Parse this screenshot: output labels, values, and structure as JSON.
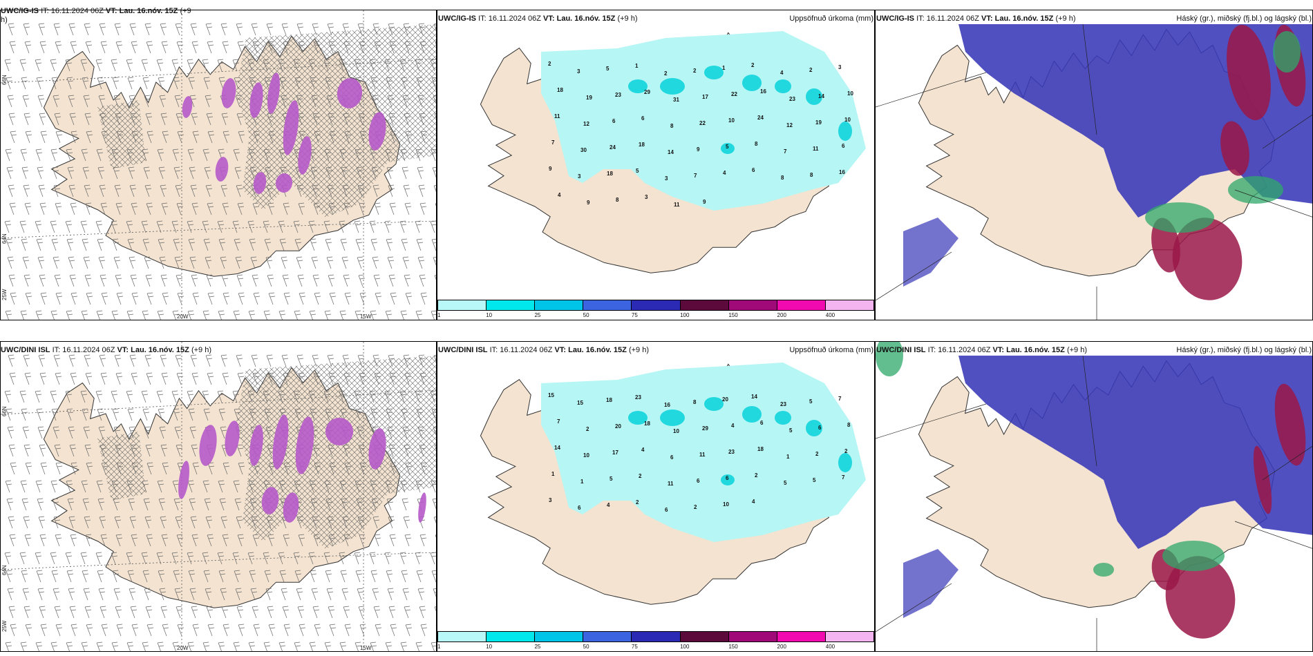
{
  "rows": [
    {
      "model": "UWC/IG-IS",
      "wind_panel": {
        "title_model": "UWC/IG-IS",
        "title_it": "IT: 16.11.2024 06Z",
        "title_vt_label": "VT:",
        "title_vt": "Lau. 16.nóv. 15Z",
        "title_lead": "(+9",
        "title_lead_wrap": "h)"
      },
      "precip_panel": {
        "title_model": "UWC/IG-IS",
        "title_it": "IT: 16.11.2024 06Z",
        "title_vt_label": "VT:",
        "title_vt": "Lau. 16.nóv. 15Z",
        "title_lead": "(+9 h)",
        "right_title": "Uppsöfnuð úrkoma (mm)",
        "values": [
          "2",
          "3",
          "5",
          "1",
          "2",
          "2",
          "1",
          "2",
          "4",
          "2",
          "3",
          "18",
          "19",
          "23",
          "29",
          "31",
          "17",
          "22",
          "16",
          "23",
          "14",
          "10",
          "11",
          "12",
          "6",
          "6",
          "8",
          "22",
          "10",
          "24",
          "12",
          "19",
          "10",
          "7",
          "30",
          "24",
          "18",
          "14",
          "9",
          "5",
          "8",
          "7",
          "11",
          "6",
          "9",
          "3",
          "18",
          "5",
          "3",
          "7",
          "4",
          "6",
          "8",
          "8",
          "16",
          "4",
          "9",
          "8",
          "3",
          "11",
          "9"
        ]
      },
      "cloud_panel": {
        "title_model": "UWC/IG-IS",
        "title_it": "IT: 16.11.2024 06Z",
        "title_vt_label": "VT:",
        "title_vt": "Lau. 16.nóv. 15Z",
        "title_lead": "(+9 h)",
        "right_title": "Háský (gr.), miðský (fj.bl.) og lágský (bl.)"
      }
    },
    {
      "model": "UWC/DINI ISL",
      "wind_panel": {
        "title_model": "UWC/DINI ISL",
        "title_it": "IT: 16.11.2024 06Z",
        "title_vt_label": "VT:",
        "title_vt": "Lau. 16.nóv. 15Z",
        "title_lead": "(+9 h)"
      },
      "precip_panel": {
        "title_model": "UWC/DINI ISL",
        "title_it": "IT: 16.11.2024 06Z",
        "title_vt_label": "VT:",
        "title_vt": "Lau. 16.nóv. 15Z",
        "title_lead": "(+9 h)",
        "right_title": "Uppsöfnuð úrkoma (mm)",
        "values": [
          "15",
          "15",
          "18",
          "23",
          "16",
          "8",
          "20",
          "14",
          "23",
          "5",
          "7",
          "7",
          "2",
          "20",
          "18",
          "10",
          "29",
          "4",
          "6",
          "5",
          "6",
          "8",
          "14",
          "10",
          "17",
          "4",
          "6",
          "11",
          "23",
          "18",
          "1",
          "2",
          "2",
          "1",
          "1",
          "5",
          "2",
          "11",
          "6",
          "6",
          "2",
          "5",
          "5",
          "7",
          "3",
          "6",
          "4",
          "2",
          "6",
          "2",
          "10",
          "4"
        ]
      },
      "cloud_panel": {
        "title_model": "UWC/DINI ISL",
        "title_it": "IT: 16.11.2024 06Z",
        "title_vt_label": "VT:",
        "title_vt": "Lau. 16.nóv. 15Z",
        "title_lead": "(+9 h)",
        "right_title": "Háský (gr.), miðský (fj.bl.) og lágský (bl.)"
      }
    }
  ],
  "axis_labels": {
    "lon_20": "20W",
    "lon_15": "15W",
    "lat_66": "66N",
    "lat_64": "64N",
    "lon_25": "25W"
  },
  "colorbar": {
    "ticks": [
      "1",
      "10",
      "25",
      "50",
      "75",
      "100",
      "150",
      "200",
      "400"
    ],
    "colors": [
      "#b8f8f8",
      "#00e8ec",
      "#00c4e8",
      "#3c64e0",
      "#2a2ab4",
      "#5c0a3c",
      "#a00a78",
      "#f00ab0",
      "#f4b4f0"
    ]
  },
  "colors": {
    "land": "#f3e3d0",
    "precip_light": "#b6f6f4",
    "precip_mid": "#1ad6dd",
    "wind_precip": "#b659c9",
    "cloud_high": "#3838b8",
    "cloud_mid": "#9a1848",
    "cloud_low": "#2fa86a"
  }
}
